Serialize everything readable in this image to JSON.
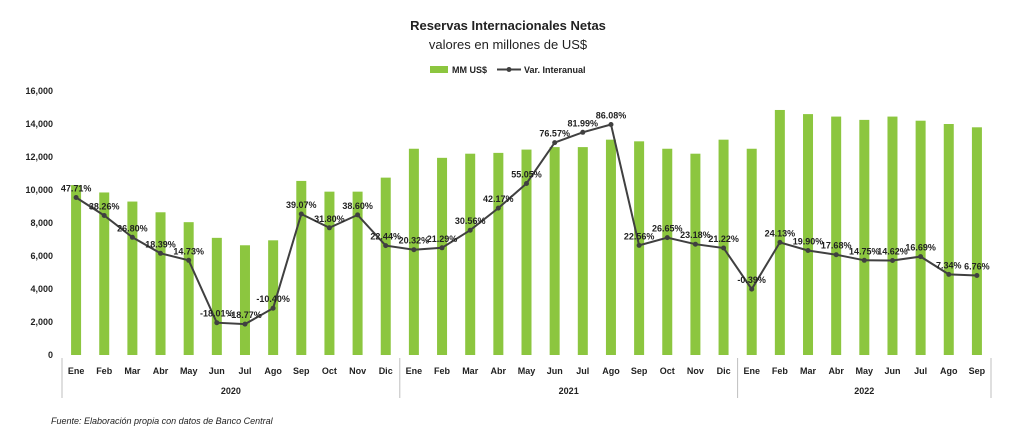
{
  "chart_data": {
    "type": "bar",
    "title": "Reservas Internacionales Netas",
    "subtitle": "valores en millones de US$",
    "categories": [
      "Ene",
      "Feb",
      "Mar",
      "Abr",
      "May",
      "Jun",
      "Jul",
      "Ago",
      "Sep",
      "Oct",
      "Nov",
      "Dic",
      "Ene",
      "Feb",
      "Mar",
      "Abr",
      "May",
      "Jun",
      "Jul",
      "Ago",
      "Sep",
      "Oct",
      "Nov",
      "Dic",
      "Ene",
      "Feb",
      "Mar",
      "Abr",
      "May",
      "Jun",
      "Jul",
      "Ago",
      "Sep"
    ],
    "years": [
      {
        "label": "2020",
        "count": 12
      },
      {
        "label": "2021",
        "count": 12
      },
      {
        "label": "2022",
        "count": 9
      }
    ],
    "ylim": [
      0,
      16000
    ],
    "yticks": [
      "0",
      "2,000",
      "4,000",
      "6,000",
      "8,000",
      "10,000",
      "12,000",
      "14,000",
      "16,000"
    ],
    "legend_position": "top-center",
    "bars": {
      "name": "MM US$",
      "color": "#8cc63f",
      "values": [
        10300,
        9850,
        9300,
        8650,
        8050,
        7100,
        6650,
        6950,
        10550,
        9900,
        9900,
        10750,
        12500,
        11950,
        12200,
        12250,
        12450,
        12600,
        12600,
        13050,
        12950,
        12500,
        12200,
        13050,
        12500,
        14850,
        14600,
        14450,
        14250,
        14450,
        14200,
        14000,
        13800
      ]
    },
    "line": {
      "name": "Var. Interanual",
      "color": "#404040",
      "values": [
        47.71,
        38.26,
        26.8,
        18.39,
        14.73,
        -18.01,
        -18.77,
        -10.4,
        39.07,
        31.8,
        38.6,
        22.44,
        20.32,
        21.29,
        30.56,
        42.17,
        55.05,
        76.57,
        81.99,
        86.08,
        22.56,
        26.65,
        23.18,
        21.22,
        -0.39,
        24.13,
        19.9,
        17.68,
        14.75,
        14.62,
        16.69,
        7.34,
        6.76
      ],
      "labels": [
        "47.71%",
        "38.26%",
        "26.80%",
        "18.39%",
        "14.73%",
        "-18.01%",
        "-18.77%",
        "-10.40%",
        "39.07%",
        "31.80%",
        "38.60%",
        "22.44%",
        "20.32%",
        "21.29%",
        "30.56%",
        "42.17%",
        "55.05%",
        "76.57%",
        "81.99%",
        "86.08%",
        "22.56%",
        "26.65%",
        "23.18%",
        "21.22%",
        "-0.39%",
        "24.13%",
        "19.90%",
        "17.68%",
        "14.75%",
        "14.62%",
        "16.69%",
        "7.34%",
        "6.76%"
      ]
    },
    "grid": false
  },
  "source": "Fuente: Elaboración propia con datos de Banco Central"
}
